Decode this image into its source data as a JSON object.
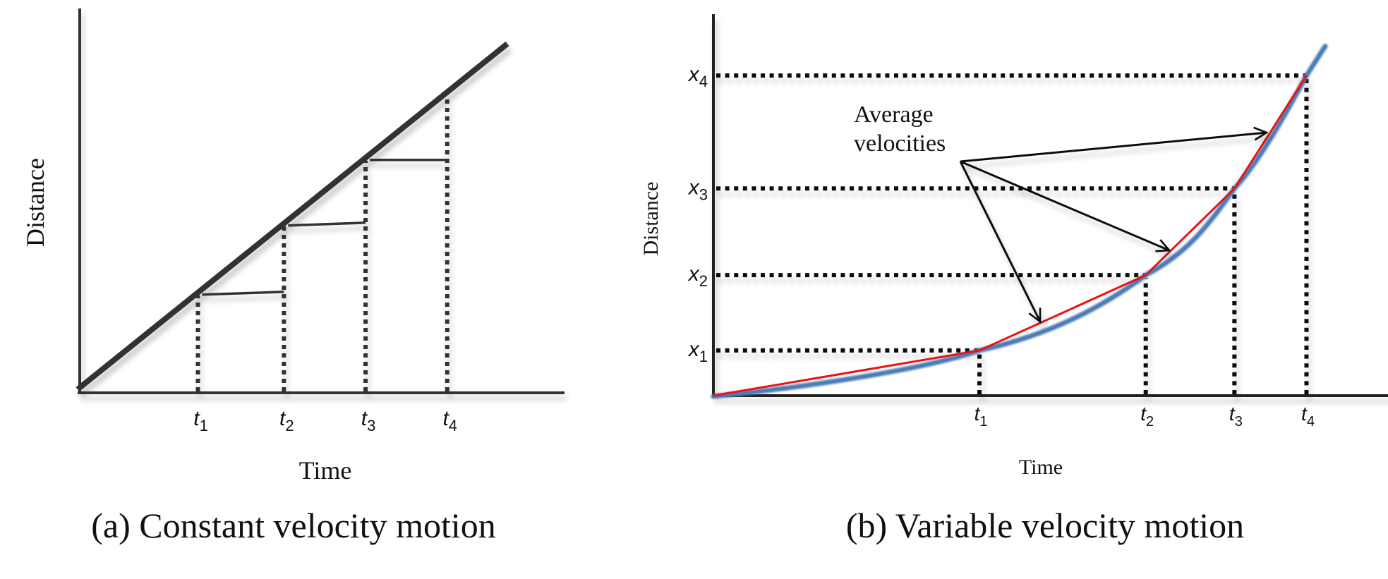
{
  "chart_data": [
    {
      "type": "line",
      "panel": "a",
      "title": "(a) Constant velocity motion",
      "xlabel": "Time",
      "ylabel": "Distance",
      "axis_color": "#333333",
      "line_color": "#333333",
      "x_ticks": [
        {
          "label": "t",
          "sub": "1",
          "t": 0.28
        },
        {
          "label": "t",
          "sub": "2",
          "t": 0.48
        },
        {
          "label": "t",
          "sub": "3",
          "t": 0.67
        },
        {
          "label": "t",
          "sub": "4",
          "t": 0.86
        }
      ],
      "line": {
        "from": [
          0,
          0
        ],
        "to": [
          1.0,
          1.0
        ]
      },
      "note": "Straight distance-time line; horizontal segments between successive tick times show equal average velocities"
    },
    {
      "type": "line",
      "panel": "b",
      "title": "(b) Variable velocity motion",
      "xlabel": "Time",
      "ylabel": "Distance",
      "axis_color": "#222222",
      "curve_color": "#4a7ab8",
      "secant_color": "#ee1111",
      "annotation": {
        "lines": [
          "Average",
          "velocities"
        ]
      },
      "x_ticks": [
        {
          "label": "t",
          "sub": "1",
          "t": 0.48
        },
        {
          "label": "t",
          "sub": "2",
          "t": 0.78
        },
        {
          "label": "t",
          "sub": "3",
          "t": 0.94
        },
        {
          "label": "t",
          "sub": "4",
          "t": 1.07
        }
      ],
      "y_ticks": [
        {
          "label": "x",
          "sub": "1",
          "x": 0.12
        },
        {
          "label": "x",
          "sub": "2",
          "x": 0.32
        },
        {
          "label": "x",
          "sub": "3",
          "x": 0.55
        },
        {
          "label": "x",
          "sub": "4",
          "x": 0.85
        }
      ],
      "points": [
        {
          "t": 0.0,
          "x": 0.0
        },
        {
          "t": 0.48,
          "x": 0.12
        },
        {
          "t": 0.78,
          "x": 0.32
        },
        {
          "t": 0.94,
          "x": 0.55
        },
        {
          "t": 1.07,
          "x": 0.85
        }
      ],
      "note": "Curved (accelerating) distance-time graph; red chords between points show average velocities over each interval"
    }
  ]
}
